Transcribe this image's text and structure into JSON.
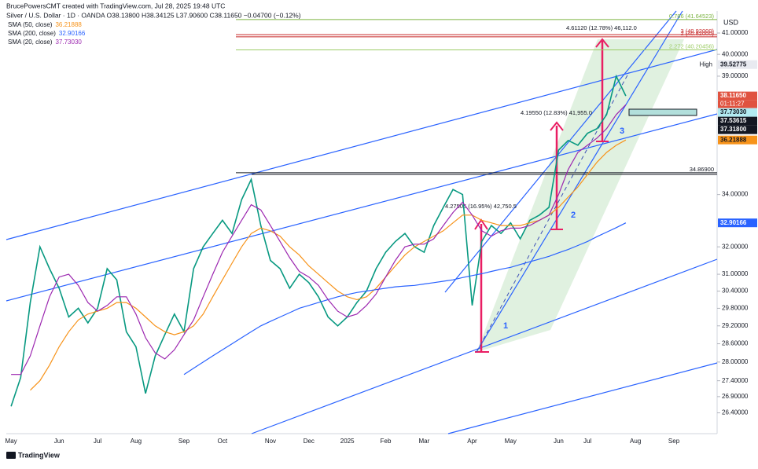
{
  "header": {
    "byline": "BrucePowersCMT created with TradingView.com, Jul 28, 2025 19:48 UTC",
    "symbol": "Silver / U.S. Dollar · 1D · OANDA  O38.13800  H38.34125  L37.90600  C38.11650  −0.04700 (−0.12%)",
    "currency": "USD",
    "brand": "TradingView"
  },
  "chart_data": {
    "type": "line",
    "log_scale": true,
    "grid": false,
    "categories": [
      "May",
      null,
      null,
      null,
      null,
      "Jun",
      null,
      null,
      null,
      "Jul",
      null,
      null,
      null,
      "Aug",
      null,
      null,
      null,
      null,
      "Sep",
      null,
      null,
      null,
      "Oct",
      null,
      null,
      null,
      null,
      "Nov",
      null,
      null,
      null,
      "Dec",
      null,
      null,
      null,
      "2025",
      null,
      null,
      null,
      "Feb",
      null,
      null,
      null,
      "Mar",
      null,
      null,
      null,
      null,
      "Apr",
      null,
      null,
      null,
      "May",
      null,
      null,
      null,
      null,
      "Jun",
      null,
      null,
      "Jul",
      null,
      null,
      null,
      null,
      "Aug",
      null,
      null,
      null,
      "Sep",
      null,
      null,
      null,
      null
    ],
    "series": [
      {
        "name": "Silver / U.S. Dollar",
        "color": "#089981",
        "values": [
          26.6,
          27.5,
          30.0,
          32.0,
          31.2,
          30.5,
          29.5,
          29.8,
          29.3,
          29.8,
          31.2,
          30.8,
          29.0,
          28.5,
          27.0,
          28.2,
          28.9,
          29.6,
          29.0,
          31.2,
          32.0,
          32.5,
          33.0,
          32.5,
          33.8,
          34.6,
          32.8,
          31.5,
          31.2,
          30.5,
          31.0,
          30.7,
          30.2,
          29.5,
          29.2,
          29.5,
          30.0,
          30.4,
          31.2,
          31.8,
          32.2,
          32.5,
          32.0,
          31.8,
          32.8,
          33.5,
          34.2,
          34.0,
          29.9,
          32.2,
          32.8,
          32.5,
          32.9,
          32.3,
          33.0,
          33.2,
          33.5,
          35.8,
          36.2,
          36.0,
          36.5,
          36.7,
          37.3,
          39.0,
          38.1165,
          null,
          null,
          null,
          null,
          null,
          null,
          null,
          null,
          null
        ]
      },
      {
        "name": "SMA (50, close)",
        "color": "#f7931a",
        "last_label": "36.21888",
        "values": [
          null,
          null,
          27.1,
          27.4,
          27.9,
          28.5,
          29.0,
          29.4,
          29.6,
          29.7,
          29.8,
          30.0,
          30.0,
          29.8,
          29.5,
          29.2,
          29.0,
          28.9,
          29.0,
          29.2,
          29.6,
          30.2,
          30.8,
          31.4,
          32.0,
          32.5,
          32.7,
          32.6,
          32.4,
          32.0,
          31.7,
          31.3,
          31.0,
          30.7,
          30.4,
          30.2,
          30.1,
          30.2,
          30.5,
          30.9,
          31.3,
          31.7,
          32.0,
          32.2,
          32.4,
          32.6,
          32.9,
          33.2,
          33.2,
          33.0,
          32.9,
          32.8,
          32.8,
          32.8,
          32.9,
          33.0,
          33.2,
          33.5,
          33.9,
          34.3,
          34.8,
          35.3,
          35.7,
          36.0,
          36.21888,
          null,
          null,
          null,
          null,
          null,
          null,
          null,
          null,
          null
        ]
      },
      {
        "name": "SMA (200, close)",
        "color": "#2962ff",
        "last_label": "32.90166",
        "values": [
          null,
          null,
          null,
          null,
          null,
          null,
          null,
          null,
          null,
          null,
          null,
          null,
          null,
          null,
          null,
          null,
          null,
          null,
          27.6,
          27.8,
          28.0,
          28.2,
          28.4,
          28.6,
          28.8,
          29.0,
          29.2,
          29.35,
          29.5,
          29.65,
          29.8,
          29.9,
          30.0,
          30.1,
          30.2,
          30.28,
          30.35,
          30.4,
          30.45,
          30.5,
          30.55,
          30.58,
          30.6,
          30.65,
          30.7,
          30.75,
          30.8,
          30.88,
          30.95,
          31.02,
          31.1,
          31.18,
          31.25,
          31.35,
          31.45,
          31.55,
          31.65,
          31.78,
          31.9,
          32.05,
          32.2,
          32.38,
          32.55,
          32.72,
          32.90166,
          null,
          null,
          null,
          null,
          null,
          null,
          null,
          null,
          null
        ]
      },
      {
        "name": "SMA (20, close)",
        "color": "#9c27b0",
        "last_label": "37.73030",
        "values": [
          27.6,
          27.6,
          28.2,
          29.2,
          30.2,
          30.9,
          31.0,
          30.6,
          30.0,
          29.7,
          29.9,
          30.2,
          30.2,
          29.6,
          28.8,
          28.3,
          28.1,
          28.4,
          28.9,
          29.4,
          30.2,
          31.0,
          31.8,
          32.4,
          33.0,
          33.6,
          33.4,
          32.8,
          32.2,
          31.6,
          31.1,
          30.9,
          30.6,
          30.1,
          29.7,
          29.5,
          29.6,
          29.9,
          30.3,
          30.9,
          31.5,
          32.0,
          32.1,
          32.1,
          32.3,
          32.8,
          33.3,
          33.7,
          33.2,
          32.6,
          32.4,
          32.6,
          32.7,
          32.7,
          32.8,
          33.0,
          33.2,
          34.0,
          35.0,
          35.7,
          36.0,
          36.3,
          36.7,
          37.3,
          37.7303,
          null,
          null,
          null,
          null,
          null,
          null,
          null,
          null,
          null
        ]
      }
    ],
    "ylim": [
      25.77,
      42.06
    ],
    "yticks": [
      {
        "value": 26.4,
        "label": "26.40000"
      },
      {
        "value": 26.9,
        "label": "26.90000"
      },
      {
        "value": 27.4,
        "label": "27.40000"
      },
      {
        "value": 28,
        "label": "28.00000"
      },
      {
        "value": 28.6,
        "label": "28.60000"
      },
      {
        "value": 29.2,
        "label": "29.20000"
      },
      {
        "value": 29.8,
        "label": "29.80000"
      },
      {
        "value": 30.4,
        "label": "30.40000"
      },
      {
        "value": 31,
        "label": "31.00000"
      },
      {
        "value": 32,
        "label": "32.00000"
      },
      {
        "value": 34,
        "label": "34.00000"
      },
      {
        "value": 39,
        "label": "39.00000"
      },
      {
        "value": 40,
        "label": "40.00000"
      },
      {
        "value": 41,
        "label": "41.00000"
      }
    ],
    "levels": [
      {
        "value": 41.64523,
        "label": "0.786 (41.64523)",
        "color": "#7cb342"
      },
      {
        "value": 40.92,
        "label": "3 (40.92000)",
        "color": "#c62828"
      },
      {
        "value": 40.82,
        "label": "2 (40.82000)",
        "color": "#c62828"
      },
      {
        "value": 40.20456,
        "label": "2.272 (40.20456)",
        "color": "#9ccc65"
      },
      {
        "value": 34.869,
        "label": "34.86900",
        "color": "#131722"
      }
    ],
    "price_tags": [
      {
        "value": 39.52775,
        "label": "39.52775",
        "color": "#e8eaf0",
        "text_color": "#131722",
        "title": "High"
      },
      {
        "value": 38.1165,
        "label": "38.11650",
        "color": "#e0523f",
        "text_color": "#ffffff"
      },
      {
        "value": 37.7303,
        "label": "37.73030",
        "color": "#b2ebf2",
        "text_color": "#131722"
      },
      {
        "value": 37.53615,
        "label": "37.53615",
        "color": "#131722",
        "text_color": "#ffffff"
      },
      {
        "value": 37.318,
        "label": "37.31800",
        "color": "#131722",
        "text_color": "#ffffff"
      },
      {
        "value": 36.21888,
        "label": "36.21888",
        "color": "#f7931a",
        "text_color": "#131722"
      },
      {
        "value": 32.90166,
        "label": "32.90166",
        "color": "#2962ff",
        "text_color": "#ffffff"
      }
    ],
    "countdown": "01:11:27",
    "annotations": {
      "wave_1": "1",
      "wave_2": "2",
      "wave_3": "3",
      "move_a": "4.27505 (16.95%) 42,750.5",
      "move_b": "4.19550 (12.83%) 41,955.0",
      "move_c": "4.61120 (12.78%) 46,112.0"
    }
  }
}
